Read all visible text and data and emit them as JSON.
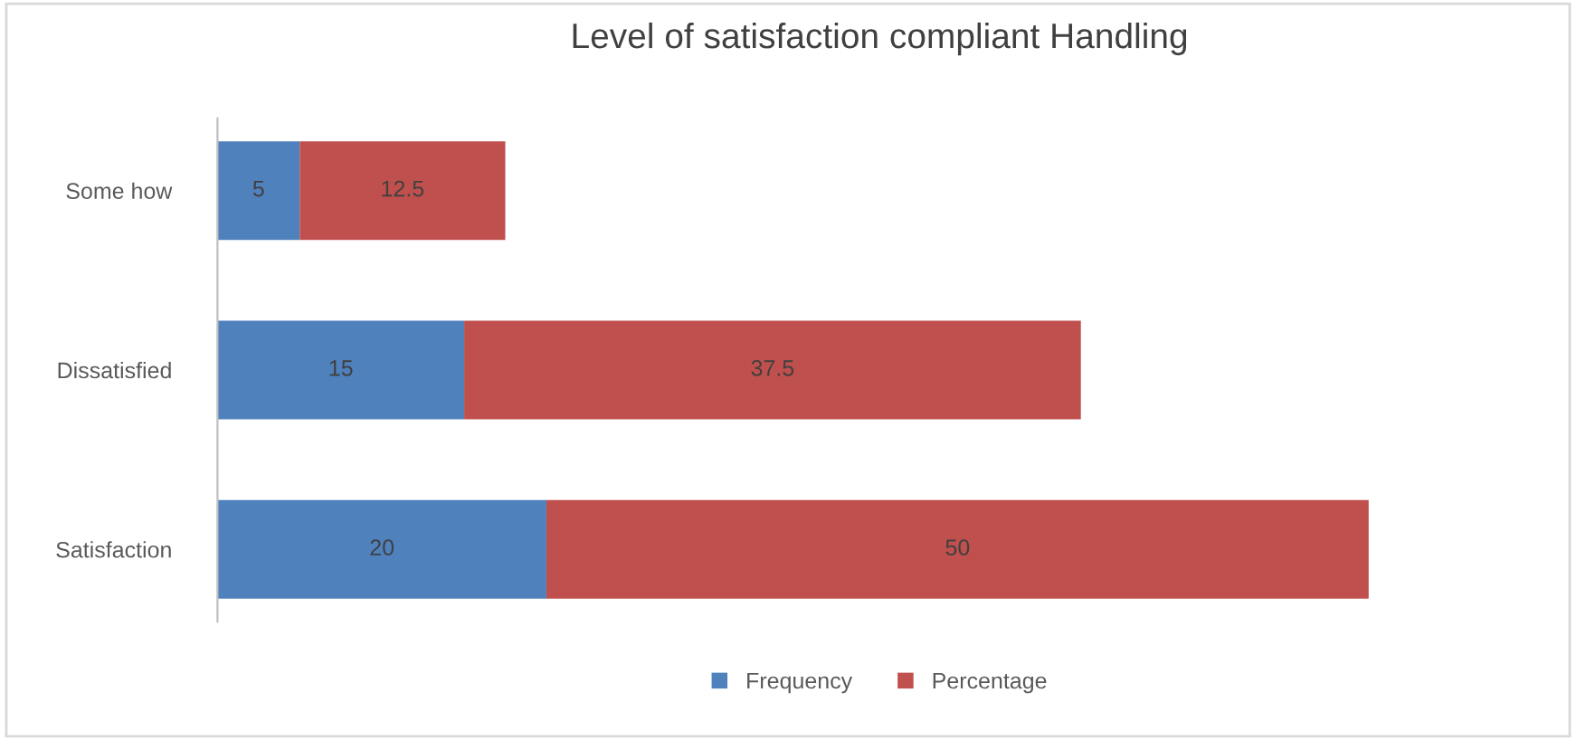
{
  "chart_data": {
    "type": "bar",
    "orientation": "horizontal",
    "stacked": true,
    "title": "Level of satisfaction compliant Handling",
    "categories": [
      "Some how",
      "Dissatisfied",
      "Satisfaction"
    ],
    "series": [
      {
        "name": "Frequency",
        "color": "#4f81bd",
        "values": [
          5,
          15,
          20
        ]
      },
      {
        "name": "Percentage",
        "color": "#c0504d",
        "values": [
          12.5,
          37.5,
          50
        ]
      }
    ],
    "data_labels": true,
    "legend": "bottom",
    "grid": false
  }
}
